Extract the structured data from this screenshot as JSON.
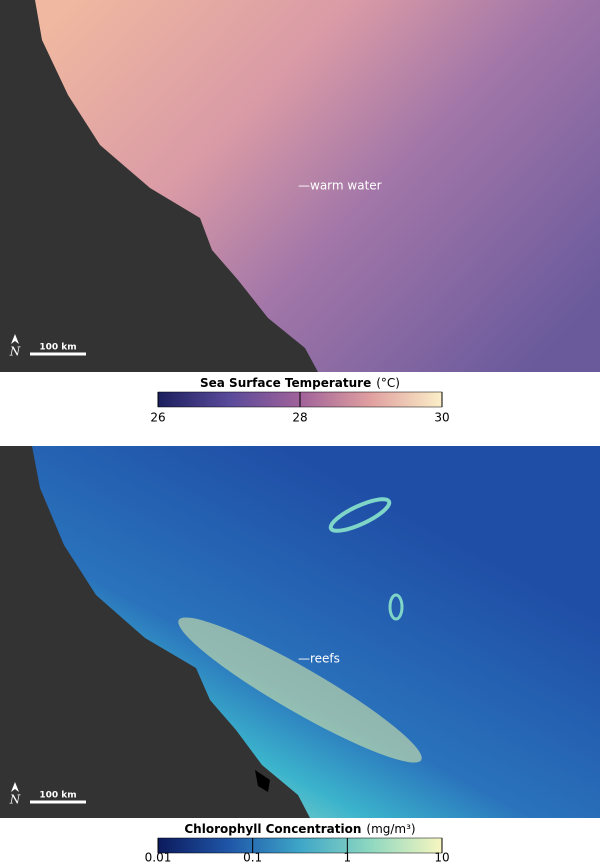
{
  "panels": [
    {
      "annotation": "—warm water",
      "scale_bar": "100 km",
      "north": "N",
      "colorbar": {
        "title": "Sea Surface Temperature",
        "unit": "(°C)",
        "lim": [
          26,
          30
        ],
        "ticks": [
          26,
          28,
          30
        ],
        "log": false,
        "colors": [
          "#1b1f5e",
          "#5a4a9a",
          "#a0629a",
          "#e0a0a0",
          "#fbefc8"
        ]
      }
    },
    {
      "annotation": "—reefs",
      "scale_bar": "100 km",
      "north": "N",
      "colorbar": {
        "title": "Chlorophyll Concentration",
        "unit": "(mg/m³)",
        "lim": [
          0.01,
          10
        ],
        "ticks": [
          0.01,
          0.1,
          1,
          10
        ],
        "log": true,
        "colors": [
          "#0c1a5c",
          "#1f56a8",
          "#3ea6c8",
          "#8fd8c0",
          "#f8f6c0"
        ]
      }
    }
  ]
}
